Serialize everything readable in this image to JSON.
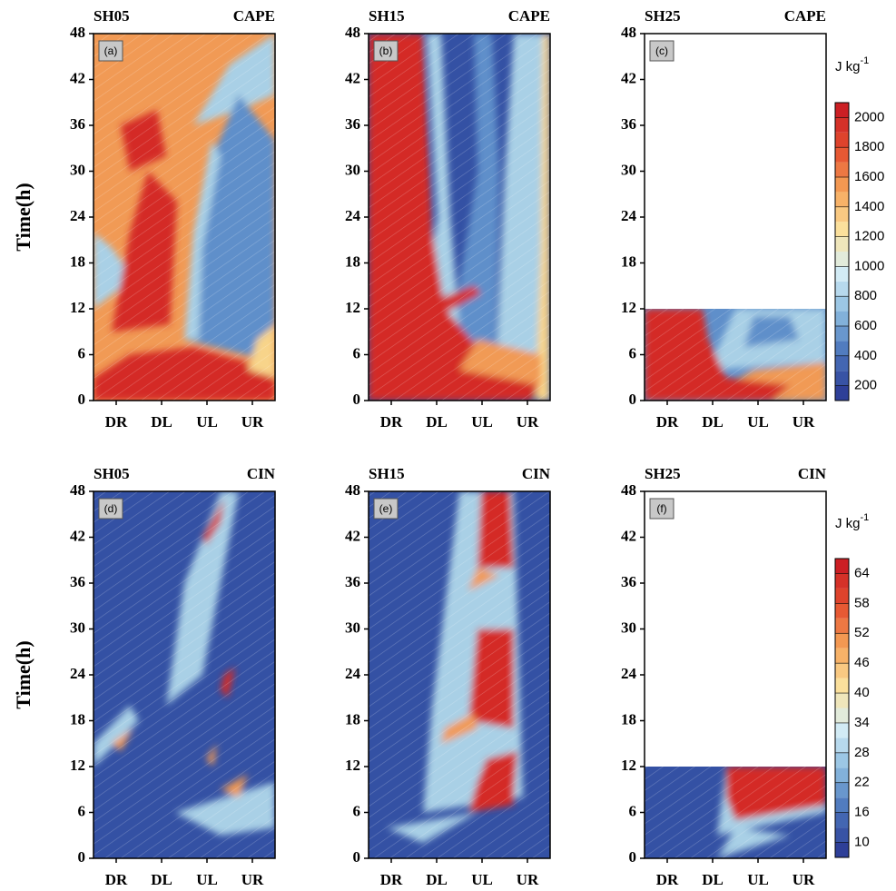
{
  "ylabel": "Time(h)",
  "ylim": [
    0,
    48
  ],
  "yticks": [
    0,
    6,
    12,
    18,
    24,
    30,
    36,
    42,
    48
  ],
  "categories": [
    "DR",
    "DL",
    "UL",
    "UR"
  ],
  "panels": [
    {
      "run": "SH05",
      "field": "CAPE",
      "tag": "(a)"
    },
    {
      "run": "SH15",
      "field": "CAPE",
      "tag": "(b)"
    },
    {
      "run": "SH25",
      "field": "CAPE",
      "tag": "(c)"
    },
    {
      "run": "SH05",
      "field": "CIN",
      "tag": "(d)"
    },
    {
      "run": "SH15",
      "field": "CIN",
      "tag": "(e)"
    },
    {
      "run": "SH25",
      "field": "CIN",
      "tag": "(f)"
    }
  ],
  "colorbars": [
    {
      "unit": "J kg",
      "unit_sup": "-1",
      "range": [
        100,
        2100
      ],
      "ticks": [
        200,
        400,
        600,
        800,
        1000,
        1200,
        1400,
        1600,
        1800,
        2000
      ]
    },
    {
      "unit": "J kg",
      "unit_sup": "-1",
      "range": [
        7,
        67
      ],
      "ticks": [
        10,
        16,
        22,
        28,
        34,
        40,
        46,
        52,
        58,
        64
      ]
    }
  ]
}
